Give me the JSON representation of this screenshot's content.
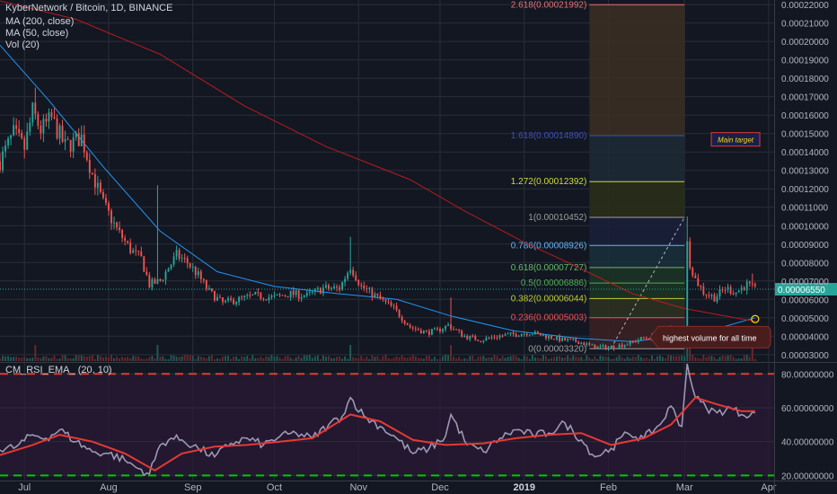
{
  "header": {
    "title": "KyberNetwork / Bitcoin, 1D, BINANCE",
    "ma200": "MA (200, close)",
    "ma50": "MA (50, close)",
    "vol": "Vol (20)",
    "rsi_title": "CM_RSI_EMA_ (20, 10)"
  },
  "colors": {
    "background": "#131722",
    "grid": "#2a2e39",
    "up": "#26a69a",
    "down": "#ef5350",
    "ma50": "#2196f3",
    "ma200": "#b71c1c",
    "rsi_line": "#9e98b6",
    "rsi_ema": "#e53935",
    "rsi_band_top": "#e53935",
    "rsi_band_bottom": "#00c800",
    "rsi_fill": "#2b1a35"
  },
  "chart_data": [
    {
      "type": "candlestick",
      "title": "KyberNetwork / Bitcoin, 1D, BINANCE",
      "x_axis": {
        "labels": [
          "Jul",
          "Aug",
          "Sep",
          "Oct",
          "Nov",
          "Dec",
          "2019",
          "Feb",
          "Mar",
          "Apr"
        ],
        "start_date": "2018-06-22",
        "end_date": "2019-04-03"
      },
      "y_axis": {
        "range": [
          2.65e-05,
          0.0002225
        ],
        "ticks": [
          "0.00022000",
          "0.00021000",
          "0.00020000",
          "0.00019000",
          "0.00018000",
          "0.00017000",
          "0.00016000",
          "0.00015000",
          "0.00014000",
          "0.00013000",
          "0.00012000",
          "0.00011000",
          "0.00010000",
          "0.00009000",
          "0.00008000",
          "0.00007000",
          "0.00006000",
          "0.00005000",
          "0.00004000",
          "0.00003000"
        ]
      },
      "last_price": {
        "value": 6.55e-05,
        "label": "0.00006550"
      },
      "price_path": [
        [
          "2018-06-22",
          0.000135
        ],
        [
          "2018-06-27",
          0.00015
        ],
        [
          "2018-07-01",
          0.000142
        ],
        [
          "2018-07-04",
          0.000162
        ],
        [
          "2018-07-07",
          0.000152
        ],
        [
          "2018-07-11",
          0.000158
        ],
        [
          "2018-07-16",
          0.000143
        ],
        [
          "2018-07-22",
          0.000148
        ],
        [
          "2018-07-26",
          0.000128
        ],
        [
          "2018-07-30",
          0.000112
        ],
        [
          "2018-08-04",
          9.8e-05
        ],
        [
          "2018-08-09",
          8.7e-05
        ],
        [
          "2018-08-13",
          8.2e-05
        ],
        [
          "2018-08-16",
          6.8e-05
        ],
        [
          "2018-08-20",
          7e-05
        ],
        [
          "2018-08-23",
          7.7e-05
        ],
        [
          "2018-08-26",
          8.4e-05
        ],
        [
          "2018-08-30",
          8e-05
        ],
        [
          "2018-09-03",
          7.3e-05
        ],
        [
          "2018-09-07",
          6.4e-05
        ],
        [
          "2018-09-12",
          5.8e-05
        ],
        [
          "2018-09-18",
          6e-05
        ],
        [
          "2018-09-24",
          6.2e-05
        ],
        [
          "2018-10-01",
          6.1e-05
        ],
        [
          "2018-10-07",
          6.3e-05
        ],
        [
          "2018-10-13",
          6.2e-05
        ],
        [
          "2018-10-19",
          6.6e-05
        ],
        [
          "2018-10-25",
          6.6e-05
        ],
        [
          "2018-10-29",
          7.8e-05
        ],
        [
          "2018-11-02",
          6.7e-05
        ],
        [
          "2018-11-08",
          6.1e-05
        ],
        [
          "2018-11-14",
          5.5e-05
        ],
        [
          "2018-11-20",
          4.5e-05
        ],
        [
          "2018-11-26",
          4.2e-05
        ],
        [
          "2018-11-30",
          4.3e-05
        ],
        [
          "2018-12-04",
          4.6e-05
        ],
        [
          "2018-12-10",
          4e-05
        ],
        [
          "2018-12-16",
          3.8e-05
        ],
        [
          "2018-12-22",
          4e-05
        ],
        [
          "2018-12-28",
          4.1e-05
        ],
        [
          "2019-01-03",
          4.2e-05
        ],
        [
          "2019-01-09",
          4e-05
        ],
        [
          "2019-01-15",
          3.8e-05
        ],
        [
          "2019-01-21",
          3.7e-05
        ],
        [
          "2019-01-27",
          3.4e-05
        ],
        [
          "2019-02-02",
          3.4e-05
        ],
        [
          "2019-02-08",
          3.6e-05
        ],
        [
          "2019-02-14",
          3.9e-05
        ],
        [
          "2019-02-20",
          4e-05
        ],
        [
          "2019-02-24",
          4.4e-05
        ],
        [
          "2019-02-27",
          4e-05
        ],
        [
          "2019-03-01",
          4.6e-05
        ],
        [
          "2019-03-02",
          9e-05
        ],
        [
          "2019-03-03",
          8e-05
        ],
        [
          "2019-03-05",
          7.1e-05
        ],
        [
          "2019-03-08",
          6.4e-05
        ],
        [
          "2019-03-12",
          6.1e-05
        ],
        [
          "2019-03-16",
          6.6e-05
        ],
        [
          "2019-03-20",
          6.4e-05
        ],
        [
          "2019-03-24",
          6.8e-05
        ],
        [
          "2019-03-27",
          6.5e-05
        ]
      ],
      "wick_spikes": [
        {
          "date": "2018-07-05",
          "high": 0.000175
        },
        {
          "date": "2018-08-19",
          "high": 0.000122
        },
        {
          "date": "2018-10-29",
          "high": 9.4e-05
        },
        {
          "date": "2018-12-05",
          "high": 6.1e-05
        },
        {
          "date": "2019-03-02",
          "high": 0.000105
        },
        {
          "date": "2019-03-26",
          "high": 7.4e-05
        }
      ],
      "moving_averages": [
        {
          "name": "MA (50, close)",
          "color": "#2196f3",
          "points": [
            [
              "2018-06-22",
              0.000198
            ],
            [
              "2018-07-10",
              0.000168
            ],
            [
              "2018-07-30",
              0.000132
            ],
            [
              "2018-08-20",
              9.7e-05
            ],
            [
              "2018-09-10",
              7.5e-05
            ],
            [
              "2018-10-01",
              6.7e-05
            ],
            [
              "2018-10-25",
              6.3e-05
            ],
            [
              "2018-11-15",
              6e-05
            ],
            [
              "2018-12-05",
              5.1e-05
            ],
            [
              "2018-12-28",
              4.3e-05
            ],
            [
              "2019-01-20",
              3.9e-05
            ],
            [
              "2019-02-10",
              3.7e-05
            ],
            [
              "2019-03-01",
              4.1e-05
            ],
            [
              "2019-03-15",
              4.5e-05
            ],
            [
              "2019-03-27",
              5e-05
            ]
          ]
        },
        {
          "name": "MA (200, close)",
          "color": "#b71c1c",
          "points": [
            [
              "2018-06-22",
              0.000222
            ],
            [
              "2018-07-20",
              0.000212
            ],
            [
              "2018-08-20",
              0.000193
            ],
            [
              "2018-09-20",
              0.000165
            ],
            [
              "2018-10-20",
              0.000143
            ],
            [
              "2018-11-20",
              0.000125
            ],
            [
              "2018-12-10",
              0.000108
            ],
            [
              "2019-01-01",
              9.1e-05
            ],
            [
              "2019-01-20",
              7.8e-05
            ],
            [
              "2019-02-10",
              6.3e-05
            ],
            [
              "2019-03-01",
              5.5e-05
            ],
            [
              "2019-03-27",
              4.8e-05
            ]
          ]
        }
      ],
      "fibonacci": {
        "levels": [
          {
            "label": "2.618(0.00021992)",
            "value": 0.00021992,
            "color": "#e57373"
          },
          {
            "label": "1.618(0.00014890)",
            "value": 0.0001489,
            "color": "#3f51b5"
          },
          {
            "label": "1.272(0.00012392)",
            "value": 0.00012392,
            "color": "#cddc39"
          },
          {
            "label": "1(0.00010452)",
            "value": 0.00010452,
            "color": "#9e9e9e"
          },
          {
            "label": "0.786(0.00008926)",
            "value": 8.926e-05,
            "color": "#64b5f6"
          },
          {
            "label": "0.618(0.00007727)",
            "value": 7.727e-05,
            "color": "#66bb6a"
          },
          {
            "label": "0.5(0.00006886)",
            "value": 6.886e-05,
            "color": "#4caf50"
          },
          {
            "label": "0.382(0.00006044)",
            "value": 6.044e-05,
            "color": "#c0ca33"
          },
          {
            "label": "0.236(0.00005003)",
            "value": 5.003e-05,
            "color": "#ef5350"
          },
          {
            "label": "0(0.00003320)",
            "value": 3.32e-05,
            "color": "#9e9e9e"
          }
        ],
        "range_start": "2019-01-25",
        "range_end": "2019-03-01"
      },
      "annotations": [
        {
          "text": "Main target",
          "type": "box"
        },
        {
          "text": "highest volume for all time",
          "type": "callout"
        }
      ]
    },
    {
      "type": "line",
      "title": "CM_RSI_EMA_ (20, 10)",
      "y_axis": {
        "range": [
          17,
          86
        ],
        "ticks": [
          "80.00000000",
          "60.00000000",
          "40.00000000",
          "20.00000000"
        ]
      },
      "bands": [
        80,
        20
      ],
      "series": [
        {
          "name": "RSI",
          "points": [
            [
              "2018-06-22",
              35
            ],
            [
              "2018-06-28",
              37
            ],
            [
              "2018-07-04",
              44
            ],
            [
              "2018-07-09",
              42
            ],
            [
              "2018-07-14",
              47
            ],
            [
              "2018-07-20",
              40
            ],
            [
              "2018-07-26",
              34
            ],
            [
              "2018-08-01",
              33
            ],
            [
              "2018-08-07",
              29
            ],
            [
              "2018-08-12",
              24
            ],
            [
              "2018-08-16",
              21
            ],
            [
              "2018-08-20",
              38
            ],
            [
              "2018-08-24",
              42
            ],
            [
              "2018-08-28",
              41
            ],
            [
              "2018-09-03",
              36
            ],
            [
              "2018-09-09",
              31
            ],
            [
              "2018-09-15",
              39
            ],
            [
              "2018-09-21",
              42
            ],
            [
              "2018-09-27",
              38
            ],
            [
              "2018-10-03",
              43
            ],
            [
              "2018-10-09",
              45
            ],
            [
              "2018-10-15",
              42
            ],
            [
              "2018-10-21",
              50
            ],
            [
              "2018-10-26",
              55
            ],
            [
              "2018-10-29",
              66
            ],
            [
              "2018-11-03",
              55
            ],
            [
              "2018-11-09",
              49
            ],
            [
              "2018-11-15",
              42
            ],
            [
              "2018-11-21",
              33
            ],
            [
              "2018-11-27",
              36
            ],
            [
              "2018-12-03",
              43
            ],
            [
              "2018-12-05",
              56
            ],
            [
              "2018-12-11",
              38
            ],
            [
              "2018-12-17",
              34
            ],
            [
              "2018-12-23",
              42
            ],
            [
              "2018-12-29",
              47
            ],
            [
              "2019-01-04",
              44
            ],
            [
              "2019-01-10",
              45
            ],
            [
              "2019-01-16",
              51
            ],
            [
              "2019-01-22",
              41
            ],
            [
              "2019-01-27",
              31
            ],
            [
              "2019-02-02",
              36
            ],
            [
              "2019-02-08",
              45
            ],
            [
              "2019-02-14",
              42
            ],
            [
              "2019-02-20",
              50
            ],
            [
              "2019-02-24",
              61
            ],
            [
              "2019-02-28",
              49
            ],
            [
              "2019-03-02",
              86
            ],
            [
              "2019-03-05",
              66
            ],
            [
              "2019-03-09",
              60
            ],
            [
              "2019-03-13",
              57
            ],
            [
              "2019-03-18",
              60
            ],
            [
              "2019-03-22",
              56
            ],
            [
              "2019-03-27",
              57
            ]
          ]
        },
        {
          "name": "EMA",
          "points": [
            [
              "2018-06-22",
              32
            ],
            [
              "2018-07-04",
              38
            ],
            [
              "2018-07-14",
              44
            ],
            [
              "2018-07-26",
              40
            ],
            [
              "2018-08-07",
              33
            ],
            [
              "2018-08-18",
              23
            ],
            [
              "2018-08-28",
              33
            ],
            [
              "2018-09-09",
              37
            ],
            [
              "2018-09-21",
              38
            ],
            [
              "2018-10-03",
              40
            ],
            [
              "2018-10-15",
              42
            ],
            [
              "2018-10-29",
              56
            ],
            [
              "2018-11-09",
              52
            ],
            [
              "2018-11-21",
              41
            ],
            [
              "2018-12-03",
              38
            ],
            [
              "2018-12-17",
              39
            ],
            [
              "2018-12-29",
              42
            ],
            [
              "2019-01-10",
              44
            ],
            [
              "2019-01-22",
              45
            ],
            [
              "2019-02-02",
              38
            ],
            [
              "2019-02-14",
              42
            ],
            [
              "2019-02-24",
              50
            ],
            [
              "2019-03-05",
              66
            ],
            [
              "2019-03-13",
              62
            ],
            [
              "2019-03-22",
              58
            ],
            [
              "2019-03-27",
              58
            ]
          ]
        }
      ]
    }
  ]
}
